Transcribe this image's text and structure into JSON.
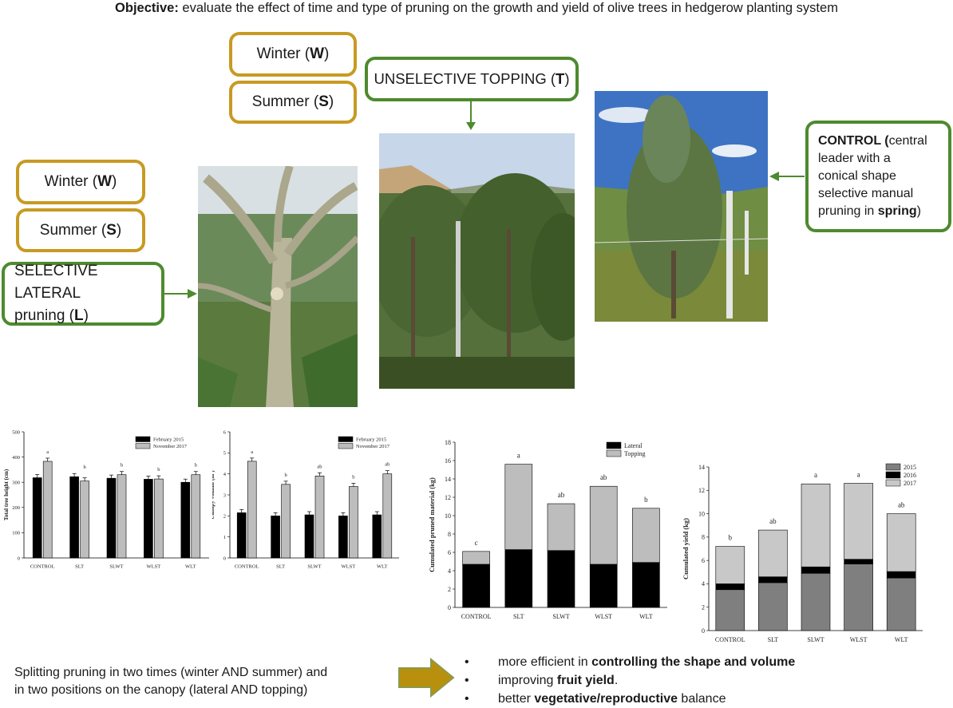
{
  "objective": {
    "label": "Objective:",
    "text": "evaluate the effect of time and type of pruning on the growth and yield of olive trees in hedgerow planting system"
  },
  "topping_group": {
    "winter": {
      "text": "Winter (",
      "bold": "W",
      "end": ")"
    },
    "summer": {
      "text": "Summer (",
      "bold": "S",
      "end": ")"
    },
    "method": {
      "text": "UNSELECTIVE TOPPING (",
      "bold": "T",
      "end": ")"
    }
  },
  "lateral_group": {
    "winter": {
      "text": "Winter (",
      "bold": "W",
      "end": ")"
    },
    "summer": {
      "text": "Summer (",
      "bold": "S",
      "end": ")"
    },
    "method": {
      "line1": "SELECTIVE LATERAL",
      "line2a": "pruning (",
      "bold": "L",
      "line2b": ")"
    }
  },
  "control": {
    "bold1": "CONTROL (",
    "line1": "central",
    "line2": "leader with a",
    "line3": "conical shape",
    "line4": "selective manual",
    "line5a": "pruning in ",
    "bold2": "spring",
    "line5b": ")"
  },
  "colors": {
    "gold": "#c89a22",
    "green": "#4e8a2e",
    "arrow": "#b8900e"
  },
  "chart_data": [
    {
      "type": "bar",
      "ylabel": "Total tree height (cm)",
      "ylim": [
        0,
        500
      ],
      "yticks": [
        "0",
        "100",
        "200",
        "300",
        "400",
        "500"
      ],
      "categories": [
        "CONTROL",
        "SLT",
        "SLWT",
        "WLST",
        "WLT"
      ],
      "series": [
        {
          "name": "February 2015",
          "color": "#000000",
          "values": [
            318,
            322,
            316,
            312,
            300
          ]
        },
        {
          "name": "November 2017",
          "color": "#bdbdbd",
          "values": [
            383,
            305,
            330,
            313,
            330
          ]
        }
      ],
      "letters": [
        "a",
        "b",
        "b",
        "b",
        "b"
      ]
    },
    {
      "type": "bar",
      "ylabel": "Canopy volume (m³)",
      "ylim": [
        0,
        6
      ],
      "yticks": [
        "0",
        "1",
        "2",
        "3",
        "4",
        "5",
        "6"
      ],
      "categories": [
        "CONTROL",
        "SLT",
        "SLWT",
        "WLST",
        "WLT"
      ],
      "series": [
        {
          "name": "February 2015",
          "color": "#000000",
          "values": [
            2.15,
            2.0,
            2.05,
            2.0,
            2.05
          ]
        },
        {
          "name": "November 2017",
          "color": "#bdbdbd",
          "values": [
            4.6,
            3.5,
            3.9,
            3.4,
            4.0
          ]
        }
      ],
      "letters": [
        "a",
        "b",
        "ab",
        "b",
        "ab"
      ]
    },
    {
      "type": "bar",
      "stacked": true,
      "ylabel": "Cumulated pruned material (kg)",
      "ylim": [
        0,
        18
      ],
      "yticks": [
        "0",
        "2",
        "4",
        "6",
        "8",
        "10",
        "12",
        "14",
        "16",
        "18"
      ],
      "categories": [
        "CONTROL",
        "SLT",
        "SLWT",
        "WLST",
        "WLT"
      ],
      "series": [
        {
          "name": "Lateral",
          "color": "#000000",
          "values": [
            4.7,
            6.3,
            6.2,
            4.7,
            4.9
          ]
        },
        {
          "name": "Topping",
          "color": "#bdbdbd",
          "values": [
            1.4,
            9.3,
            5.1,
            8.5,
            5.9
          ]
        }
      ],
      "letters": [
        "c",
        "a",
        "ab",
        "ab",
        "b"
      ]
    },
    {
      "type": "bar",
      "stacked": true,
      "ylabel": "Cumulated yield (kg)",
      "ylim": [
        0,
        14
      ],
      "yticks": [
        "0",
        "2",
        "4",
        "6",
        "8",
        "10",
        "12",
        "14"
      ],
      "categories": [
        "CONTROL",
        "SLT",
        "SLWT",
        "WLST",
        "WLT"
      ],
      "series": [
        {
          "name": "2015",
          "color": "#7f7f7f",
          "values": [
            3.5,
            4.1,
            4.9,
            5.7,
            4.5
          ]
        },
        {
          "name": "2016",
          "color": "#000000",
          "values": [
            0.5,
            0.5,
            0.55,
            0.4,
            0.55
          ]
        },
        {
          "name": "2017",
          "color": "#c8c8c8",
          "values": [
            3.2,
            4.0,
            7.1,
            6.5,
            4.95
          ]
        }
      ],
      "letters": [
        "b",
        "ab",
        "a",
        "a",
        "ab"
      ]
    }
  ],
  "conclusion": {
    "line1": "Splitting pruning in two times (winter AND summer) and",
    "line2": "in two positions on the canopy (lateral AND topping)"
  },
  "bullets": [
    {
      "pre": "more efficient in ",
      "bold": "controlling the shape and volume",
      "post": ""
    },
    {
      "pre": "improving ",
      "bold": "fruit yield",
      "post": "."
    },
    {
      "pre": "better ",
      "bold": "vegetative/reproductive",
      "post": " balance"
    }
  ]
}
